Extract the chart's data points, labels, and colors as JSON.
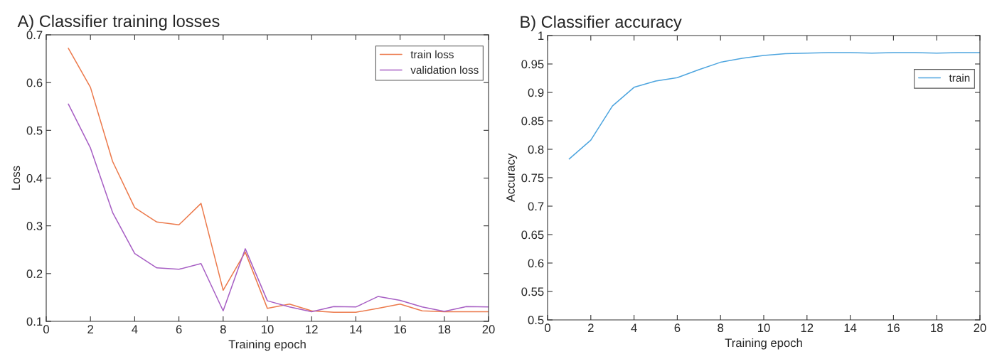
{
  "chart_data": [
    {
      "type": "line",
      "title": "A) Classifier training losses",
      "xlabel": "Training epoch",
      "ylabel": "Loss",
      "x": [
        1,
        2,
        3,
        4,
        5,
        6,
        7,
        8,
        9,
        10,
        11,
        12,
        13,
        14,
        15,
        16,
        17,
        18,
        19,
        20
      ],
      "series": [
        {
          "name": "train loss",
          "color": "#ec7a4c",
          "values": [
            0.672,
            0.59,
            0.435,
            0.338,
            0.308,
            0.302,
            0.347,
            0.165,
            0.245,
            0.127,
            0.136,
            0.122,
            0.119,
            0.119,
            0.127,
            0.136,
            0.122,
            0.12,
            0.12,
            0.12
          ]
        },
        {
          "name": "validation loss",
          "color": "#a75fc4",
          "values": [
            0.555,
            0.463,
            0.328,
            0.242,
            0.212,
            0.209,
            0.221,
            0.122,
            0.252,
            0.143,
            0.13,
            0.12,
            0.131,
            0.13,
            0.152,
            0.144,
            0.13,
            0.121,
            0.131,
            0.13
          ]
        }
      ],
      "xlim": [
        0,
        20
      ],
      "xticks": [
        0,
        2,
        4,
        6,
        8,
        10,
        12,
        14,
        16,
        18,
        20
      ],
      "ylim": [
        0.1,
        0.7
      ],
      "yticks": [
        0.1,
        0.2,
        0.3,
        0.4,
        0.5,
        0.6,
        0.7
      ],
      "grid": false,
      "legend": "top right"
    },
    {
      "type": "line",
      "title": "B) Classifier accuracy",
      "xlabel": "Training epoch",
      "ylabel": "Accuracy",
      "x": [
        1,
        2,
        3,
        4,
        5,
        6,
        7,
        8,
        9,
        10,
        11,
        12,
        13,
        14,
        15,
        16,
        17,
        18,
        19,
        20
      ],
      "series": [
        {
          "name": "train",
          "color": "#4ea5df",
          "values": [
            0.783,
            0.816,
            0.876,
            0.909,
            0.92,
            0.926,
            0.94,
            0.953,
            0.96,
            0.965,
            0.968,
            0.969,
            0.97,
            0.97,
            0.969,
            0.97,
            0.97,
            0.969,
            0.97,
            0.97
          ]
        }
      ],
      "xlim": [
        0,
        20
      ],
      "xticks": [
        0,
        2,
        4,
        6,
        8,
        10,
        12,
        14,
        16,
        18,
        20
      ],
      "ylim": [
        0.5,
        1
      ],
      "yticks": [
        0.5,
        0.55,
        0.6,
        0.65,
        0.7,
        0.75,
        0.8,
        0.85,
        0.9,
        0.95,
        1
      ],
      "grid": false,
      "legend": "top right"
    }
  ]
}
